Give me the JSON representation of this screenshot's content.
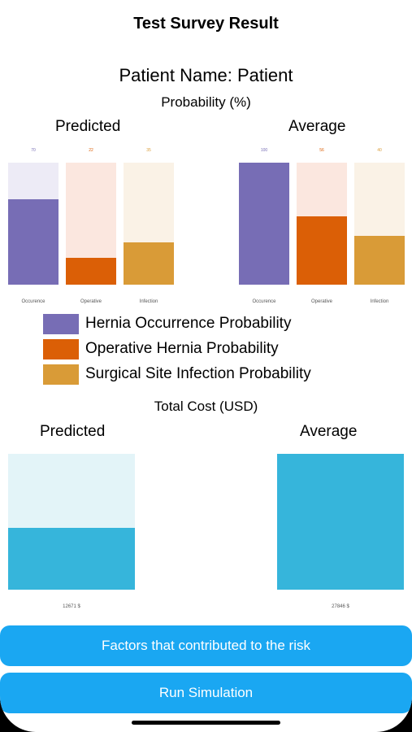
{
  "nav": {
    "title": "Test Survey Result"
  },
  "patient": {
    "name_line": "Patient Name: Patient"
  },
  "probability": {
    "section_title": "Probability (%)",
    "predicted_heading": "Predicted",
    "average_heading": "Average",
    "categories": [
      "Occurence",
      "Operative",
      "Infection"
    ],
    "colors": {
      "occurrence": "#776db5",
      "operative": "#db5f06",
      "infection": "#d99b37",
      "occurrence_bg": "#edebf6",
      "operative_bg": "#fbe7df",
      "infection_bg": "#faf2e6"
    }
  },
  "chart_data": [
    {
      "type": "bar",
      "title": "Predicted",
      "categories": [
        "Occurence",
        "Operative",
        "Infection"
      ],
      "values": [
        70,
        22,
        35
      ],
      "ylim": [
        0,
        100
      ]
    },
    {
      "type": "bar",
      "title": "Average",
      "categories": [
        "Occurence",
        "Operative",
        "Infection"
      ],
      "values": [
        100,
        56,
        40
      ],
      "ylim": [
        0,
        100
      ]
    },
    {
      "type": "bar",
      "title": "Predicted",
      "categories": [
        "12671 $"
      ],
      "values": [
        12671
      ],
      "ylim": [
        0,
        27846
      ]
    },
    {
      "type": "bar",
      "title": "Average",
      "categories": [
        "27846 $"
      ],
      "values": [
        27846
      ],
      "ylim": [
        0,
        27846
      ]
    }
  ],
  "legend": {
    "items": [
      {
        "label": "Hernia Occurrence Probability",
        "color": "#776db5"
      },
      {
        "label": "Operative Hernia Probability",
        "color": "#db5f06"
      },
      {
        "label": "Surgical Site Infection Probability",
        "color": "#d99b37"
      }
    ]
  },
  "cost": {
    "section_title": "Total Cost (USD)",
    "predicted_heading": "Predicted",
    "average_heading": "Average",
    "predicted_label": "12671 $",
    "average_label": "27846 $",
    "colors": {
      "fill": "#36b5db",
      "bg": "#e3f4f8"
    }
  },
  "actions": {
    "factors_label": "Factors that contributed to the risk",
    "simulation_label": "Run Simulation",
    "color": "#1aa7f2"
  }
}
